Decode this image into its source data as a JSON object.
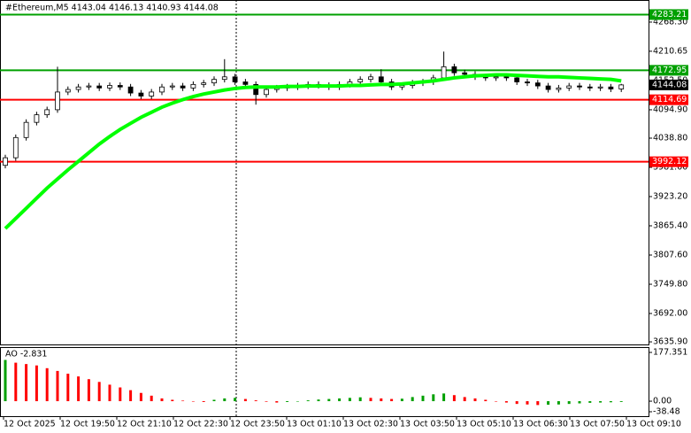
{
  "chart_data": {
    "type": "candlestick",
    "title": "#Ethereum,M5  4143.04 4146.13 4140.93 4144.08",
    "ylim": [
      3629,
      4312
    ],
    "yticks": [
      {
        "value": 4268.3,
        "label": "4268.30"
      },
      {
        "value": 4210.65,
        "label": "4210.65"
      },
      {
        "value": 4152.5,
        "label": "4152.50"
      },
      {
        "value": 4094.9,
        "label": "4094.90"
      },
      {
        "value": 4038.8,
        "label": "4038.80"
      },
      {
        "value": 3981,
        "label": "3981.00"
      },
      {
        "value": 3923.2,
        "label": "3923.20"
      },
      {
        "value": 3865.4,
        "label": "3865.40"
      },
      {
        "value": 3807.6,
        "label": "3807.60"
      },
      {
        "value": 3749.8,
        "label": "3749.80"
      },
      {
        "value": 3692,
        "label": "3692.00"
      },
      {
        "value": 3635.9,
        "label": "3635.90"
      }
    ],
    "xtick_labels": [
      "12 Oct 2025",
      "12 Oct 19:50",
      "12 Oct 21:10",
      "12 Oct 22:30",
      "12 Oct 23:50",
      "13 Oct 01:10",
      "13 Oct 02:30",
      "13 Oct 03:50",
      "13 Oct 05:10",
      "13 Oct 06:30",
      "13 Oct 07:50",
      "13 Oct 09:10"
    ],
    "levels": [
      {
        "value": 4283.21,
        "color": "#00a000"
      },
      {
        "value": 4172.95,
        "color": "#00a000"
      },
      {
        "value": 4114.69,
        "color": "#ff0000"
      },
      {
        "value": 3992.12,
        "color": "#ff0000"
      }
    ],
    "last_price": 4144.08,
    "candles": {
      "open": [
        3985,
        4000,
        4040,
        4070,
        4085,
        4095,
        4130,
        4135,
        4140,
        4142,
        4138,
        4143,
        4140,
        4128,
        4122,
        4130,
        4140,
        4142,
        4138,
        4145,
        4148,
        4155,
        4160,
        4150,
        4145,
        4125,
        4135,
        4138,
        4140,
        4142,
        4145,
        4143,
        4140,
        4145,
        4150,
        4155,
        4160,
        4150,
        4140,
        4143,
        4148,
        4150,
        4158,
        4180,
        4168,
        4165,
        4160,
        4158,
        4160,
        4158,
        4150,
        4148,
        4142,
        4135,
        4138,
        4142,
        4140,
        4138,
        4140,
        4136
      ],
      "close": [
        4000,
        4040,
        4070,
        4085,
        4095,
        4130,
        4135,
        4140,
        4142,
        4138,
        4143,
        4140,
        4128,
        4122,
        4130,
        4140,
        4142,
        4138,
        4145,
        4148,
        4155,
        4160,
        4150,
        4145,
        4125,
        4135,
        4138,
        4140,
        4142,
        4145,
        4143,
        4140,
        4145,
        4150,
        4155,
        4160,
        4150,
        4140,
        4143,
        4148,
        4150,
        4158,
        4180,
        4168,
        4165,
        4160,
        4158,
        4160,
        4158,
        4150,
        4148,
        4142,
        4135,
        4138,
        4142,
        4140,
        4138,
        4140,
        4136,
        4144.08
      ],
      "high": [
        4006,
        4046,
        4076,
        4091,
        4101,
        4180,
        4141,
        4146,
        4148,
        4148,
        4149,
        4149,
        4146,
        4134,
        4136,
        4146,
        4148,
        4148,
        4151,
        4154,
        4161,
        4195,
        4166,
        4156,
        4151,
        4141,
        4144,
        4146,
        4148,
        4151,
        4151,
        4149,
        4151,
        4156,
        4161,
        4166,
        4175,
        4156,
        4149,
        4154,
        4156,
        4164,
        4210,
        4186,
        4174,
        4171,
        4166,
        4166,
        4166,
        4164,
        4156,
        4154,
        4148,
        4144,
        4148,
        4148,
        4146,
        4146,
        4146,
        4146.13
      ],
      "low": [
        3979,
        3994,
        4034,
        4064,
        4079,
        4089,
        4124,
        4129,
        4134,
        4132,
        4132,
        4134,
        4122,
        4116,
        4116,
        4124,
        4134,
        4132,
        4132,
        4139,
        4142,
        4149,
        4144,
        4139,
        4105,
        4119,
        4129,
        4132,
        4134,
        4136,
        4137,
        4134,
        4134,
        4139,
        4144,
        4149,
        4144,
        4134,
        4134,
        4137,
        4142,
        4144,
        4152,
        4162,
        4159,
        4154,
        4152,
        4152,
        4152,
        4144,
        4142,
        4136,
        4129,
        4129,
        4132,
        4134,
        4132,
        4132,
        4130,
        4130
      ]
    },
    "ma": {
      "color": "#00ff00",
      "values": [
        3860,
        3880,
        3900,
        3920,
        3940,
        3958,
        3976,
        3993,
        4010,
        4027,
        4042,
        4056,
        4068,
        4080,
        4090,
        4100,
        4108,
        4115,
        4121,
        4126,
        4130,
        4134,
        4137,
        4139,
        4140,
        4140,
        4140,
        4141,
        4141,
        4142,
        4142,
        4142,
        4142,
        4143,
        4143,
        4144,
        4145,
        4145,
        4146,
        4148,
        4150,
        4152,
        4155,
        4158,
        4160,
        4162,
        4163,
        4164,
        4164,
        4163,
        4162,
        4161,
        4160,
        4160,
        4159,
        4158,
        4157,
        4156,
        4155,
        4152
      ]
    },
    "ao": {
      "label": "AO -2.831",
      "ylim": [
        -38.48,
        177.351
      ],
      "yticks": [
        177.351,
        {
          "value": 0,
          "label": "0.00"
        },
        -38.48
      ],
      "up_color": "#00a000",
      "down_color": "#ff0000",
      "values": [
        150,
        140,
        135,
        130,
        120,
        110,
        100,
        90,
        80,
        70,
        60,
        50,
        40,
        30,
        20,
        10,
        5,
        2,
        0,
        -3,
        5,
        10,
        12,
        8,
        3,
        -2,
        -5,
        -3,
        0,
        3,
        6,
        8,
        10,
        12,
        14,
        12,
        10,
        8,
        9,
        15,
        20,
        25,
        28,
        22,
        15,
        10,
        5,
        0,
        -5,
        -10,
        -12,
        -14,
        -13,
        -12,
        -10,
        -8,
        -6,
        -5,
        -4,
        -2.831
      ]
    }
  }
}
